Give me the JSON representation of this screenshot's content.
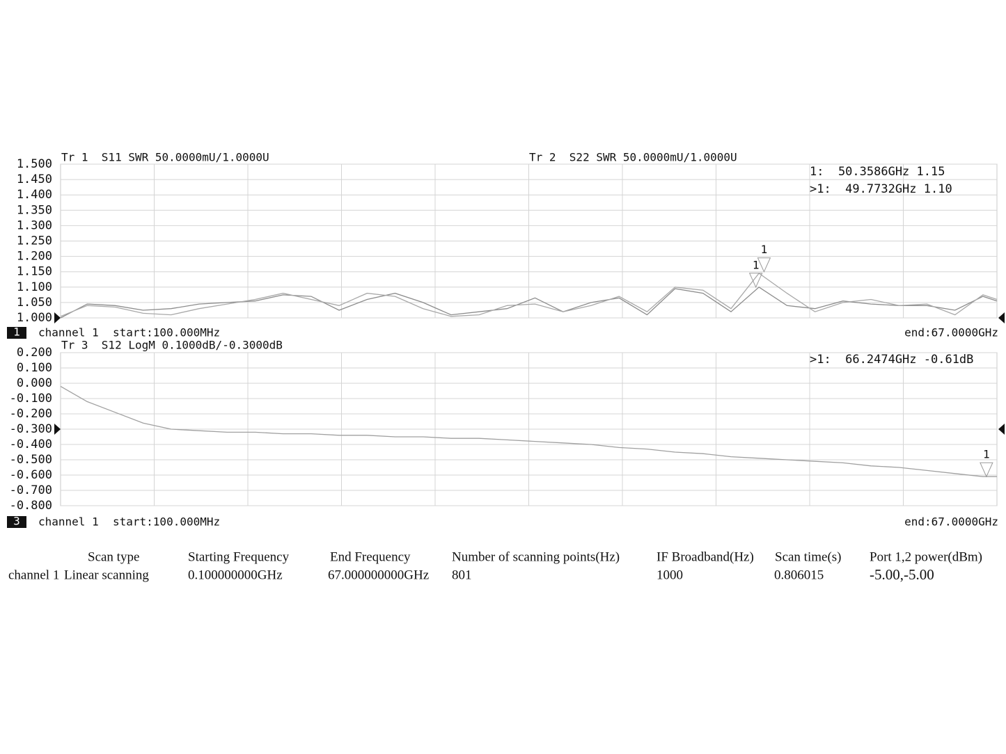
{
  "chart_data": [
    {
      "type": "line",
      "channel_index": "1",
      "channel": "channel 1",
      "start": "start:100.000MHz",
      "end": "end:67.0000GHz",
      "xlim": [
        0.1,
        67
      ],
      "ylim": [
        1.0,
        1.5
      ],
      "ref_level": 1.0,
      "grid": true,
      "yticks": [
        {
          "value": 1.5,
          "label": "1.500"
        },
        {
          "value": 1.45,
          "label": "1.450"
        },
        {
          "value": 1.4,
          "label": "1.400"
        },
        {
          "value": 1.35,
          "label": "1.350"
        },
        {
          "value": 1.3,
          "label": "1.300"
        },
        {
          "value": 1.25,
          "label": "1.250"
        },
        {
          "value": 1.2,
          "label": "1.200"
        },
        {
          "value": 1.15,
          "label": "1.150"
        },
        {
          "value": 1.1,
          "label": "1.100"
        },
        {
          "value": 1.05,
          "label": "1.050"
        },
        {
          "value": 1.0,
          "label": "1.000"
        }
      ],
      "x": [
        0.1,
        2,
        4,
        6,
        8,
        10,
        12,
        14,
        16,
        18,
        20,
        22,
        24,
        26,
        28,
        30,
        32,
        34,
        36,
        38,
        40,
        42,
        44,
        46,
        48,
        50,
        52,
        54,
        56,
        58,
        60,
        62,
        64,
        66,
        67
      ],
      "series": [
        {
          "name": "Tr 1  S11 SWR 50.0000mU/1.0000U",
          "color": "#8c8c8c",
          "values": [
            1.0,
            1.045,
            1.04,
            1.025,
            1.03,
            1.045,
            1.05,
            1.055,
            1.075,
            1.07,
            1.025,
            1.06,
            1.08,
            1.05,
            1.01,
            1.02,
            1.03,
            1.065,
            1.02,
            1.05,
            1.065,
            1.01,
            1.095,
            1.08,
            1.02,
            1.1,
            1.04,
            1.03,
            1.055,
            1.045,
            1.04,
            1.04,
            1.025,
            1.07,
            1.055
          ]
        },
        {
          "name": "Tr 2  S22 SWR 50.0000mU/1.0000U",
          "color": "#a8a8a8",
          "values": [
            1.005,
            1.04,
            1.035,
            1.015,
            1.01,
            1.03,
            1.045,
            1.06,
            1.08,
            1.06,
            1.04,
            1.08,
            1.07,
            1.03,
            1.005,
            1.01,
            1.04,
            1.045,
            1.02,
            1.04,
            1.07,
            1.02,
            1.1,
            1.09,
            1.03,
            1.145,
            1.08,
            1.02,
            1.05,
            1.06,
            1.04,
            1.045,
            1.01,
            1.075,
            1.06
          ]
        }
      ],
      "markers": [
        {
          "label": "1",
          "text": "1:  50.3586GHz 1.15",
          "x": 50.3586,
          "y": 1.15
        },
        {
          "label": "1",
          "text": ">1:  49.7732GHz 1.10",
          "x": 49.7732,
          "y": 1.1
        }
      ]
    },
    {
      "type": "line",
      "channel_index": "3",
      "channel": "channel 1",
      "start": "start:100.000MHz",
      "end": "end:67.0000GHz",
      "xlim": [
        0.1,
        67
      ],
      "ylim": [
        -0.8,
        0.2
      ],
      "ref_level": -0.3,
      "grid": true,
      "yticks": [
        {
          "value": 0.2,
          "label": "0.200"
        },
        {
          "value": 0.1,
          "label": "0.100"
        },
        {
          "value": 0,
          "label": "0.000"
        },
        {
          "value": -0.1,
          "label": "-0.100"
        },
        {
          "value": -0.2,
          "label": "-0.200"
        },
        {
          "value": -0.3,
          "label": "-0.300"
        },
        {
          "value": -0.4,
          "label": "-0.400"
        },
        {
          "value": -0.5,
          "label": "-0.500"
        },
        {
          "value": -0.6,
          "label": "-0.600"
        },
        {
          "value": -0.7,
          "label": "-0.700"
        },
        {
          "value": -0.8,
          "label": "-0.800"
        }
      ],
      "x": [
        0.1,
        2,
        4,
        6,
        8,
        10,
        12,
        14,
        16,
        18,
        20,
        22,
        24,
        26,
        28,
        30,
        32,
        34,
        36,
        38,
        40,
        42,
        44,
        46,
        48,
        50,
        52,
        54,
        56,
        58,
        60,
        62,
        64,
        66,
        67
      ],
      "series": [
        {
          "name": "Tr 3  S12 LogM 0.1000dB/-0.3000dB",
          "color": "#a0a0a0",
          "values": [
            -0.02,
            -0.12,
            -0.19,
            -0.26,
            -0.3,
            -0.31,
            -0.32,
            -0.32,
            -0.33,
            -0.33,
            -0.34,
            -0.34,
            -0.35,
            -0.35,
            -0.36,
            -0.36,
            -0.37,
            -0.38,
            -0.39,
            -0.4,
            -0.42,
            -0.43,
            -0.45,
            -0.46,
            -0.48,
            -0.49,
            -0.5,
            -0.51,
            -0.52,
            -0.54,
            -0.55,
            -0.57,
            -0.59,
            -0.61,
            -0.61
          ]
        }
      ],
      "markers": [
        {
          "label": "1",
          "text": ">1:  66.2474GHz -0.61dB",
          "x": 66.2474,
          "y": -0.61
        }
      ]
    }
  ],
  "table": {
    "header": [
      "Scan type",
      "Starting Frequency",
      "End Frequency",
      "Number of scanning points(Hz)",
      "IF Broadband(Hz)",
      "Scan time(s)",
      "Port 1,2 power(dBm)"
    ],
    "row": [
      "channel 1",
      "Linear scanning",
      "0.100000000GHz",
      "67.000000000GHz",
      "801",
      "1000",
      "0.806015",
      "-5.00,-5.00"
    ]
  }
}
